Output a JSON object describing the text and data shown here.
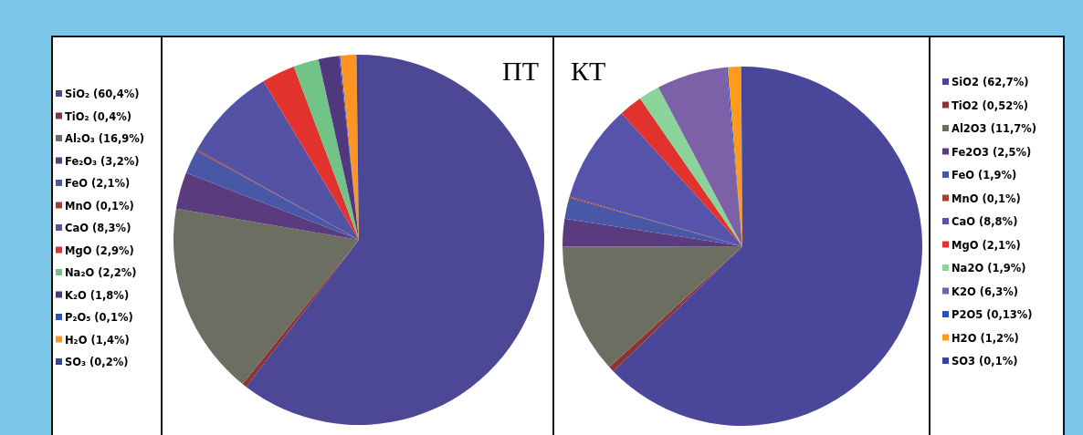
{
  "chart_data": [
    {
      "type": "pie",
      "title": "ПТ",
      "legend": "left",
      "categories": [
        "SiO₂  (60,4%)",
        "TiO₂  (0,4%)",
        "Al₂O₃ (16,9%)",
        "Fe₂O₃ (3,2%)",
        "FeO (2,1%)",
        "MnO (0,1%)",
        "CaO (8,3%)",
        "MgO (2,9%)",
        "Na₂O (2,2%)",
        "K₂O (1,8%)",
        "P₂O₅ (0,1%)",
        "H₂O (1,4%)",
        "SO₃ (0,2%)"
      ],
      "values": [
        60.4,
        0.4,
        16.9,
        3.2,
        2.1,
        0.1,
        8.3,
        2.9,
        2.2,
        1.8,
        0.1,
        1.4,
        0.2
      ],
      "colors": [
        "#4c4896",
        "#8a3434",
        "#6c6e62",
        "#5a3c7e",
        "#4858a6",
        "#a8402c",
        "#5452a4",
        "#e2322e",
        "#72c486",
        "#50387e",
        "#2454c4",
        "#ff9424",
        "#3444a0"
      ]
    },
    {
      "type": "pie",
      "title": "КТ",
      "legend": "right",
      "categories": [
        "SiO2 (62,7%)",
        "TiO2 (0,52%)",
        "Al2O3 (11,7%)",
        "Fe2O3 (2,5%)",
        "FeO (1,9%)",
        "MnO (0,1%)",
        "CaO (8,8%)",
        "MgO (2,1%)",
        "Na2O (1,9%)",
        "K2O (6,3%)",
        "P2O5 (0,13%)",
        "H2O (1,2%)",
        "SO3 (0,1%)"
      ],
      "values": [
        62.7,
        0.52,
        11.7,
        2.5,
        1.9,
        0.1,
        8.8,
        2.1,
        1.9,
        6.3,
        0.13,
        1.2,
        0.1
      ],
      "colors": [
        "#4a469a",
        "#8a3434",
        "#6c6e62",
        "#5a3c7e",
        "#4858a6",
        "#a8402c",
        "#5654aa",
        "#e2322e",
        "#8ad49a",
        "#7c60a8",
        "#2454c4",
        "#ff9a1c",
        "#3444a0"
      ]
    }
  ]
}
